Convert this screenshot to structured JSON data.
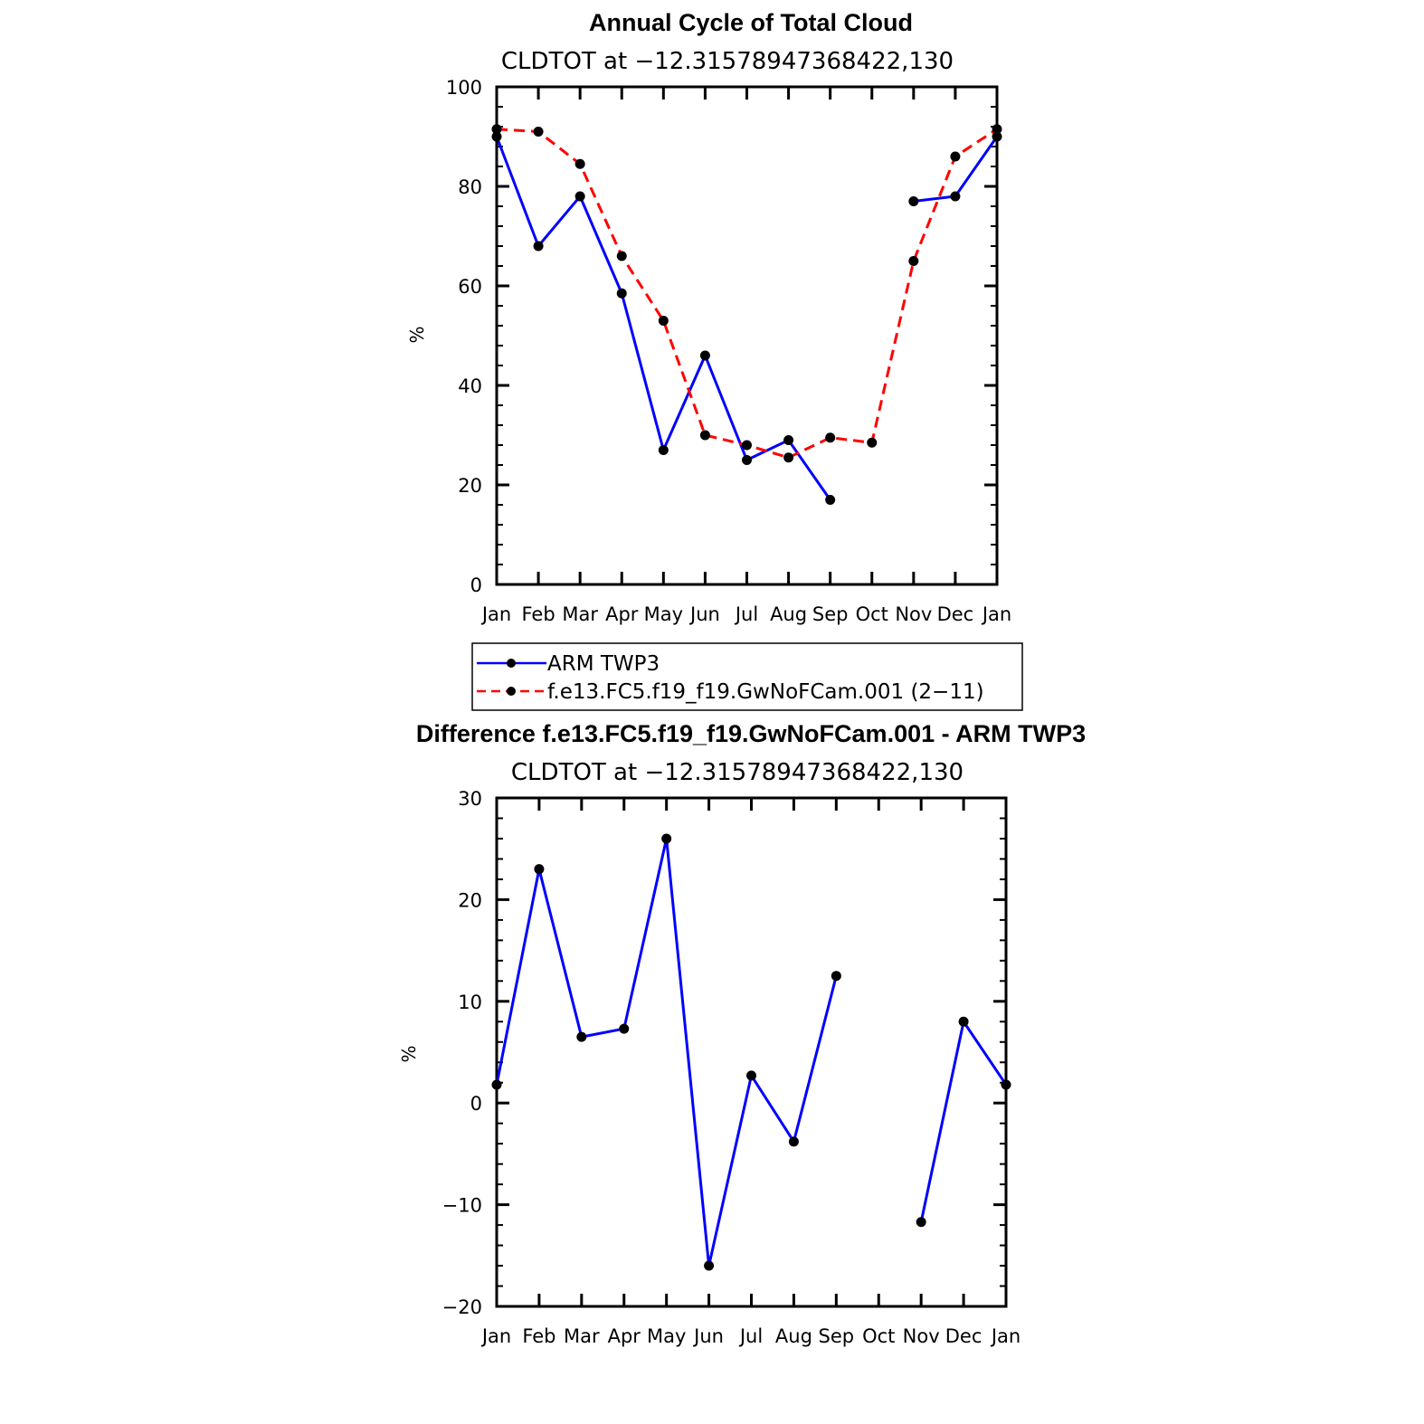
{
  "chart_data": [
    {
      "type": "line",
      "title": "Annual Cycle of Total Cloud",
      "subtitle": "CLDTOT at −12.31578947368422,130",
      "ylabel": "%",
      "ylim": [
        0,
        100
      ],
      "yticks": [
        "0",
        "20",
        "40",
        "60",
        "80",
        "100"
      ],
      "yticks_values": [
        0,
        20,
        40,
        60,
        80,
        100
      ],
      "categories": [
        "Jan",
        "Feb",
        "Mar",
        "Apr",
        "May",
        "Jun",
        "Jul",
        "Aug",
        "Sep",
        "Oct",
        "Nov",
        "Dec",
        "Jan"
      ],
      "series": [
        {
          "name": "ARM TWP3",
          "color": "#0000ff",
          "style": "solid",
          "values": [
            90,
            68,
            78,
            58.5,
            27,
            46,
            25,
            29,
            17,
            null,
            77,
            78,
            90
          ]
        },
        {
          "name": "f.e13.FC5.f19_f19.GwNoFCam.001 (2−11)",
          "color": "#ff0000",
          "style": "dashed",
          "values": [
            91.5,
            91,
            84.5,
            66,
            53,
            30,
            28,
            25.5,
            29.5,
            28.5,
            65,
            86,
            91.5
          ]
        }
      ],
      "legend": {
        "position": "below",
        "entries": [
          "ARM TWP3",
          "f.e13.FC5.f19_f19.GwNoFCam.001 (2−11)"
        ]
      }
    },
    {
      "type": "line",
      "title": "Difference f.e13.FC5.f19_f19.GwNoFCam.001 - ARM TWP3",
      "subtitle": "CLDTOT at −12.31578947368422,130",
      "ylabel": "%",
      "ylim": [
        -20,
        30
      ],
      "yticks": [
        "−20",
        "−10",
        "0",
        "10",
        "20",
        "30"
      ],
      "yticks_values": [
        -20,
        -10,
        0,
        10,
        20,
        30
      ],
      "categories": [
        "Jan",
        "Feb",
        "Mar",
        "Apr",
        "May",
        "Jun",
        "Jul",
        "Aug",
        "Sep",
        "Oct",
        "Nov",
        "Dec",
        "Jan"
      ],
      "series": [
        {
          "name": "Difference",
          "color": "#0000ff",
          "style": "solid",
          "values": [
            1.8,
            23,
            6.5,
            7.3,
            26,
            -16,
            2.7,
            -3.8,
            12.5,
            null,
            -11.7,
            8,
            1.8
          ]
        }
      ]
    }
  ]
}
